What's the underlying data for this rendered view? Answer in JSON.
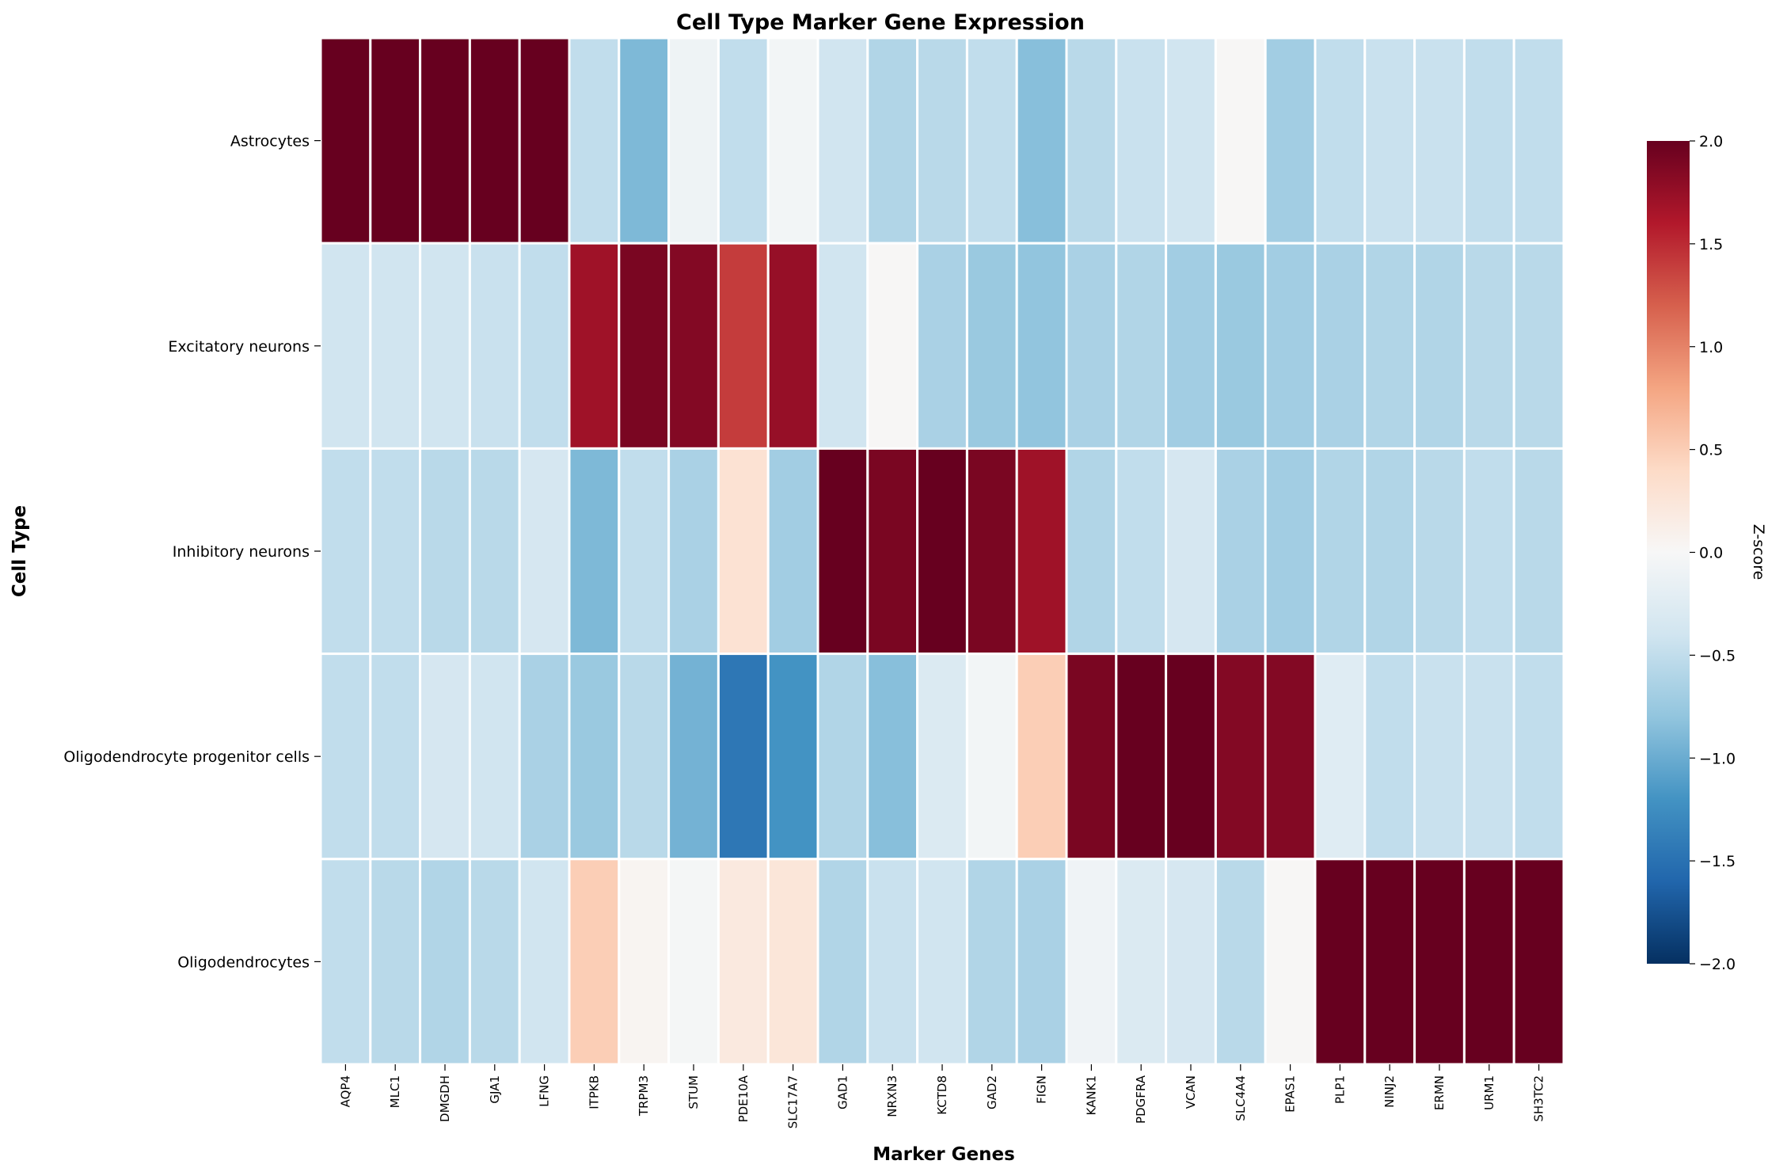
{
  "chart_data": {
    "type": "heatmap",
    "title": "Cell Type Marker Gene Expression",
    "xlabel": "Marker Genes",
    "ylabel": "Cell Type",
    "colorbar_label": "Z-score",
    "colormap": "RdBu_r",
    "vmin": -2.0,
    "vmax": 2.0,
    "colorbar_ticks": [
      2.0,
      1.5,
      1.0,
      0.5,
      0.0,
      -0.5,
      -1.0,
      -1.5,
      -2.0
    ],
    "colorbar_tick_labels": [
      "2.0",
      "1.5",
      "1.0",
      "0.5",
      "0.0",
      "−0.5",
      "−1.0",
      "−1.5",
      "−2.0"
    ],
    "rows": [
      "Astrocytes",
      "Excitatory neurons",
      "Inhibitory neurons",
      "Oligodendrocyte progenitor cells",
      "Oligodendrocytes"
    ],
    "columns": [
      "AQP4",
      "MLC1",
      "DMGDH",
      "GJA1",
      "LFNG",
      "ITPKB",
      "TRPM3",
      "STUM",
      "PDE10A",
      "SLC17A7",
      "GAD1",
      "NRXN3",
      "KCTD8",
      "GAD2",
      "FIGN",
      "KANK1",
      "PDGFRA",
      "VCAN",
      "SLC4A4",
      "EPAS1",
      "PLP1",
      "NINJ2",
      "ERMN",
      "URM1",
      "SH3TC2"
    ],
    "values": [
      [
        2.0,
        2.0,
        2.0,
        2.0,
        2.0,
        -0.5,
        -0.9,
        -0.1,
        -0.5,
        -0.05,
        -0.4,
        -0.6,
        -0.55,
        -0.5,
        -0.85,
        -0.55,
        -0.45,
        -0.4,
        0.02,
        -0.7,
        -0.5,
        -0.45,
        -0.45,
        -0.5,
        -0.5
      ],
      [
        -0.4,
        -0.4,
        -0.4,
        -0.45,
        -0.5,
        1.7,
        1.9,
        1.85,
        1.4,
        1.75,
        -0.4,
        0.02,
        -0.65,
        -0.75,
        -0.8,
        -0.65,
        -0.6,
        -0.7,
        -0.75,
        -0.7,
        -0.65,
        -0.6,
        -0.6,
        -0.55,
        -0.55
      ],
      [
        -0.5,
        -0.5,
        -0.55,
        -0.55,
        -0.35,
        -0.9,
        -0.5,
        -0.65,
        0.3,
        -0.7,
        2.0,
        1.9,
        2.0,
        1.9,
        1.7,
        -0.6,
        -0.5,
        -0.35,
        -0.65,
        -0.7,
        -0.6,
        -0.6,
        -0.55,
        -0.5,
        -0.55
      ],
      [
        -0.5,
        -0.5,
        -0.35,
        -0.4,
        -0.65,
        -0.75,
        -0.55,
        -0.95,
        -1.45,
        -1.2,
        -0.6,
        -0.85,
        -0.3,
        -0.05,
        0.5,
        1.9,
        2.0,
        2.0,
        1.85,
        1.85,
        -0.25,
        -0.5,
        -0.45,
        -0.45,
        -0.5
      ],
      [
        -0.5,
        -0.55,
        -0.6,
        -0.55,
        -0.4,
        0.5,
        0.05,
        -0.03,
        0.2,
        0.25,
        -0.6,
        -0.45,
        -0.4,
        -0.6,
        -0.65,
        -0.08,
        -0.3,
        -0.35,
        -0.55,
        0.02,
        2.0,
        2.0,
        2.0,
        2.0,
        2.0
      ]
    ]
  }
}
